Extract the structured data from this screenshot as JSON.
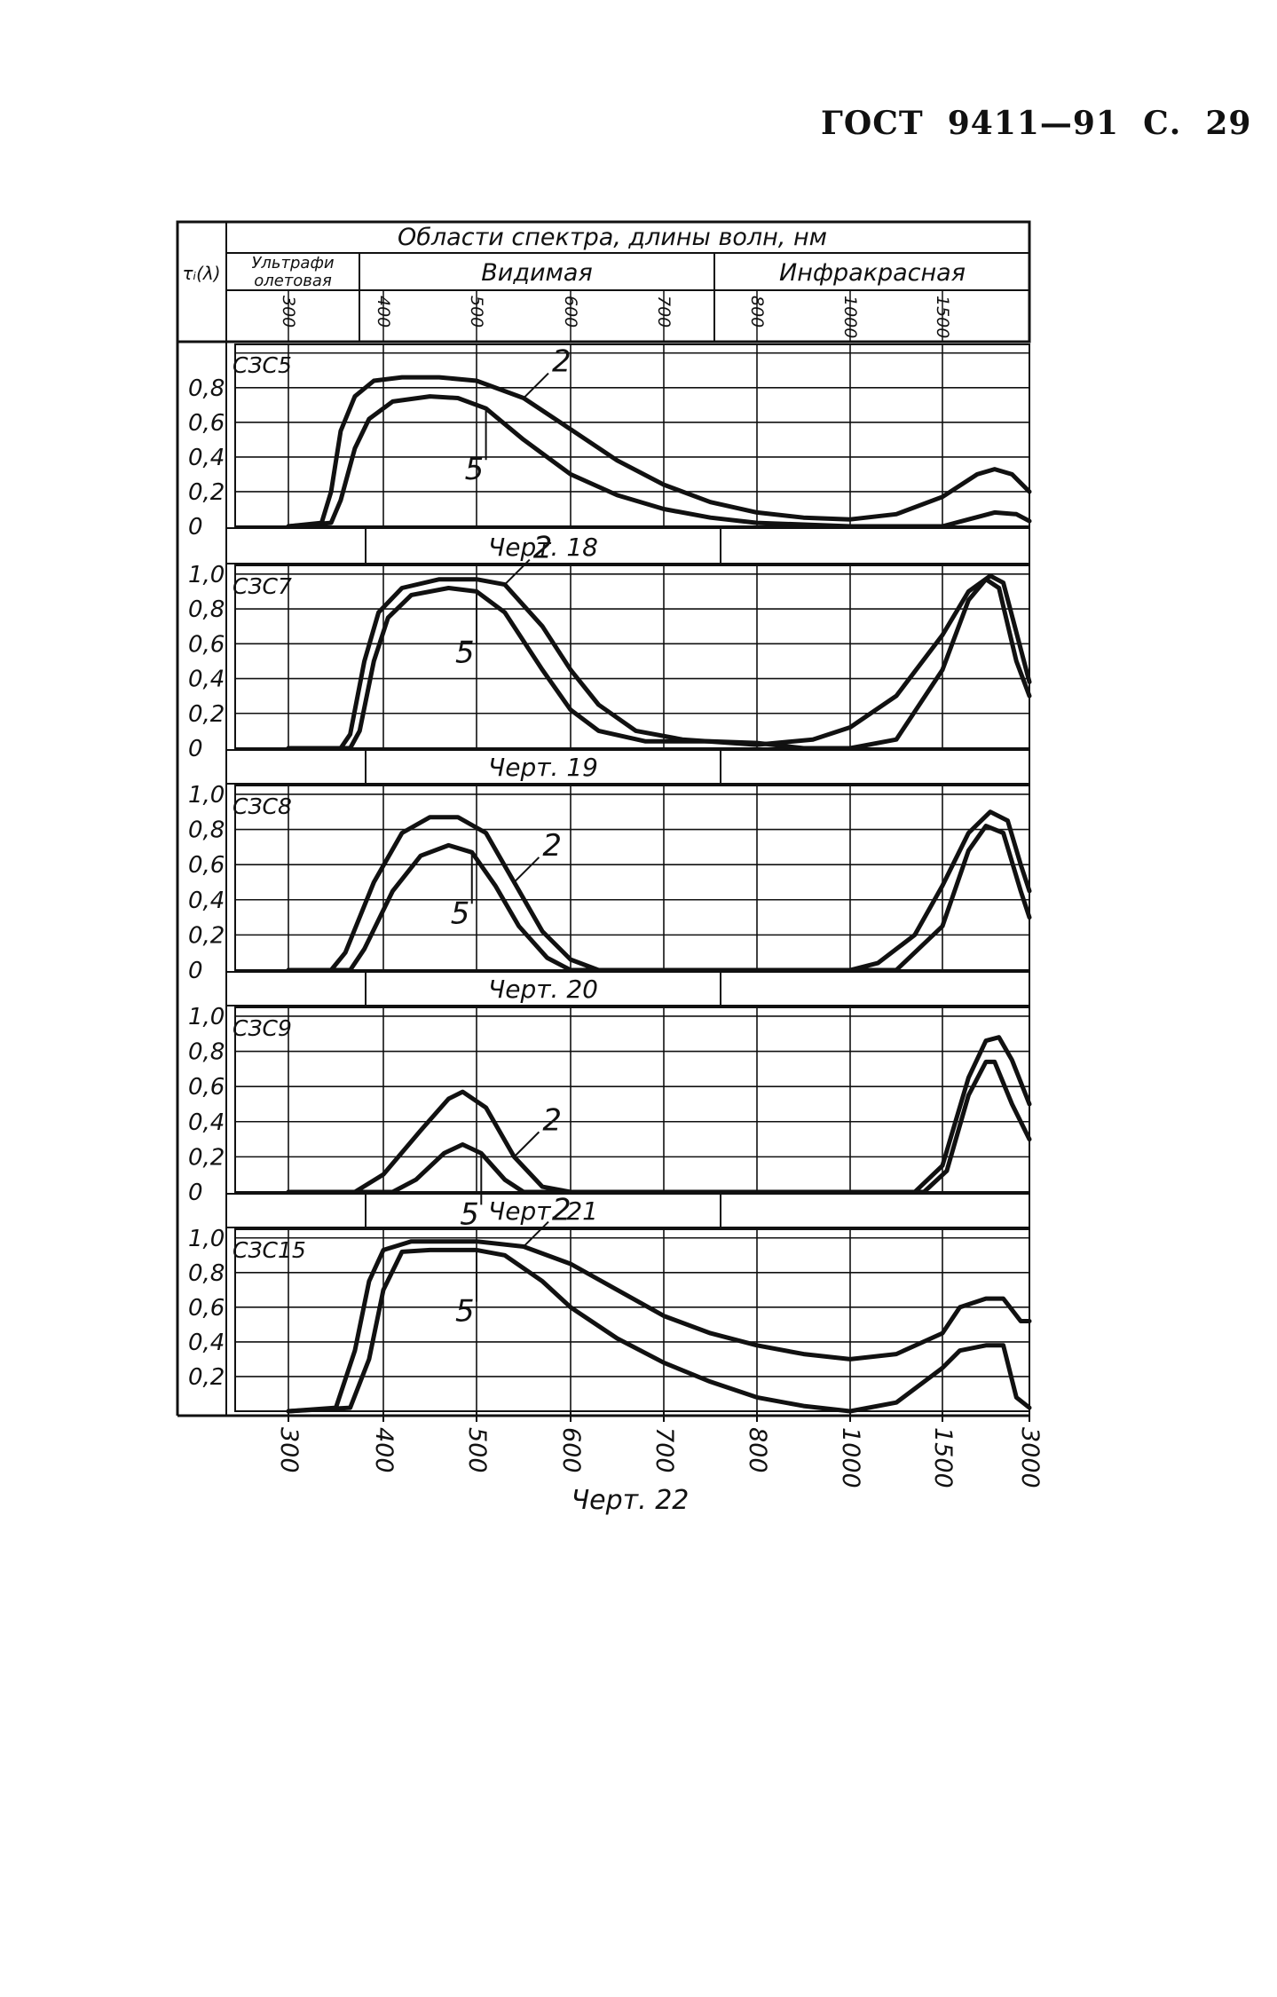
{
  "page": {
    "header": "ГОСТ  9411—91  С.  29"
  },
  "chart_data": {
    "type": "line",
    "header": {
      "title": "Области спектра, длины волн,  нм",
      "y_symbol": "τᵢ(λ)",
      "regions": [
        "Ультрафиолетовая",
        "Видимая",
        "Инфракрасная"
      ],
      "top_ticks": [
        "300",
        "400",
        "500",
        "600",
        "700",
        "800",
        "1000",
        "1500"
      ]
    },
    "x_ticks": [
      "300",
      "400",
      "500",
      "600",
      "700",
      "800",
      "1000",
      "1500",
      "3000"
    ],
    "x_note": "x positions are tick indices (0=300, 1=400, 2=500, 3=600, 4=700, 5=800, 6=1000, 7=1500, 8=3000) — nonlinear wavelength scale",
    "y_ticks": [
      "0",
      "0,2",
      "0,4",
      "0,6",
      "0,8",
      "1,0"
    ],
    "panels": [
      {
        "label": "СЗС5",
        "caption": "Черт. 18",
        "y_tick_labels": [
          "0",
          "0,2",
          "0,4",
          "0,6",
          "0,8"
        ],
        "series": [
          {
            "name": "2",
            "points": [
              [
                0,
                0
              ],
              [
                0.35,
                0.02
              ],
              [
                0.45,
                0.2
              ],
              [
                0.55,
                0.55
              ],
              [
                0.7,
                0.75
              ],
              [
                0.9,
                0.84
              ],
              [
                1.2,
                0.86
              ],
              [
                1.6,
                0.86
              ],
              [
                2.0,
                0.84
              ],
              [
                2.5,
                0.74
              ],
              [
                3.0,
                0.56
              ],
              [
                3.5,
                0.38
              ],
              [
                4.0,
                0.24
              ],
              [
                4.5,
                0.14
              ],
              [
                5.0,
                0.08
              ],
              [
                5.5,
                0.05
              ],
              [
                6.0,
                0.04
              ],
              [
                6.5,
                0.07
              ],
              [
                7.0,
                0.17
              ],
              [
                7.4,
                0.3
              ],
              [
                7.6,
                0.33
              ],
              [
                7.8,
                0.3
              ],
              [
                8.0,
                0.2
              ]
            ]
          },
          {
            "name": "5",
            "points": [
              [
                0,
                0
              ],
              [
                0.45,
                0.02
              ],
              [
                0.55,
                0.15
              ],
              [
                0.7,
                0.45
              ],
              [
                0.85,
                0.62
              ],
              [
                1.1,
                0.72
              ],
              [
                1.5,
                0.75
              ],
              [
                1.8,
                0.74
              ],
              [
                2.1,
                0.68
              ],
              [
                2.5,
                0.5
              ],
              [
                3.0,
                0.3
              ],
              [
                3.5,
                0.18
              ],
              [
                4.0,
                0.1
              ],
              [
                4.5,
                0.05
              ],
              [
                5.0,
                0.02
              ],
              [
                6.0,
                0
              ],
              [
                7.0,
                0
              ],
              [
                7.3,
                0.04
              ],
              [
                7.6,
                0.08
              ],
              [
                7.85,
                0.07
              ],
              [
                8.0,
                0.03
              ]
            ]
          }
        ]
      },
      {
        "label": "СЗС7",
        "caption": "Черт. 19",
        "y_tick_labels": [
          "0",
          "0,2",
          "0,4",
          "0,6",
          "0,8",
          "1,0"
        ],
        "series": [
          {
            "name": "2",
            "points": [
              [
                0,
                0
              ],
              [
                0.55,
                0
              ],
              [
                0.65,
                0.08
              ],
              [
                0.8,
                0.5
              ],
              [
                0.95,
                0.78
              ],
              [
                1.2,
                0.92
              ],
              [
                1.6,
                0.97
              ],
              [
                2.0,
                0.97
              ],
              [
                2.3,
                0.94
              ],
              [
                2.7,
                0.7
              ],
              [
                3.0,
                0.45
              ],
              [
                3.3,
                0.25
              ],
              [
                3.7,
                0.1
              ],
              [
                4.2,
                0.05
              ],
              [
                5.0,
                0.02
              ],
              [
                5.6,
                0.05
              ],
              [
                6.0,
                0.12
              ],
              [
                6.5,
                0.3
              ],
              [
                7.0,
                0.65
              ],
              [
                7.3,
                0.9
              ],
              [
                7.55,
                0.99
              ],
              [
                7.7,
                0.95
              ],
              [
                8.0,
                0.38
              ]
            ]
          },
          {
            "name": "5",
            "points": [
              [
                0,
                0
              ],
              [
                0.65,
                0
              ],
              [
                0.75,
                0.1
              ],
              [
                0.9,
                0.5
              ],
              [
                1.05,
                0.75
              ],
              [
                1.3,
                0.88
              ],
              [
                1.7,
                0.92
              ],
              [
                2.0,
                0.9
              ],
              [
                2.3,
                0.78
              ],
              [
                2.7,
                0.45
              ],
              [
                3.0,
                0.22
              ],
              [
                3.3,
                0.1
              ],
              [
                3.8,
                0.04
              ],
              [
                4.5,
                0.04
              ],
              [
                5.0,
                0.03
              ],
              [
                5.5,
                0
              ],
              [
                6.0,
                0
              ],
              [
                6.5,
                0.05
              ],
              [
                7.0,
                0.45
              ],
              [
                7.3,
                0.85
              ],
              [
                7.5,
                0.97
              ],
              [
                7.65,
                0.92
              ],
              [
                7.85,
                0.5
              ],
              [
                8.0,
                0.3
              ]
            ]
          }
        ]
      },
      {
        "label": "СЗС8",
        "caption": "Черт. 20",
        "y_tick_labels": [
          "0",
          "0,2",
          "0,4",
          "0,6",
          "0,8",
          "1,0"
        ],
        "series": [
          {
            "name": "2",
            "points": [
              [
                0,
                0
              ],
              [
                0.45,
                0
              ],
              [
                0.6,
                0.1
              ],
              [
                0.9,
                0.5
              ],
              [
                1.2,
                0.78
              ],
              [
                1.5,
                0.87
              ],
              [
                1.8,
                0.87
              ],
              [
                2.1,
                0.78
              ],
              [
                2.4,
                0.5
              ],
              [
                2.7,
                0.22
              ],
              [
                3.0,
                0.06
              ],
              [
                3.3,
                0
              ],
              [
                6.0,
                0
              ],
              [
                6.3,
                0.04
              ],
              [
                6.7,
                0.2
              ],
              [
                7.0,
                0.48
              ],
              [
                7.3,
                0.78
              ],
              [
                7.55,
                0.9
              ],
              [
                7.75,
                0.85
              ],
              [
                7.9,
                0.6
              ],
              [
                8.0,
                0.45
              ]
            ]
          },
          {
            "name": "5",
            "points": [
              [
                0,
                0
              ],
              [
                0.65,
                0
              ],
              [
                0.8,
                0.12
              ],
              [
                1.1,
                0.45
              ],
              [
                1.4,
                0.65
              ],
              [
                1.7,
                0.71
              ],
              [
                1.95,
                0.67
              ],
              [
                2.2,
                0.48
              ],
              [
                2.45,
                0.25
              ],
              [
                2.75,
                0.07
              ],
              [
                3.0,
                0
              ],
              [
                6.5,
                0
              ],
              [
                7.0,
                0.25
              ],
              [
                7.3,
                0.68
              ],
              [
                7.5,
                0.82
              ],
              [
                7.7,
                0.78
              ],
              [
                7.9,
                0.45
              ],
              [
                8.0,
                0.3
              ]
            ]
          }
        ]
      },
      {
        "label": "СЗС9",
        "caption": "Черт. 21",
        "y_tick_labels": [
          "0",
          "0,2",
          "0,4",
          "0,6",
          "0,8",
          "1,0"
        ],
        "series": [
          {
            "name": "2",
            "points": [
              [
                0,
                0
              ],
              [
                0.7,
                0
              ],
              [
                1.0,
                0.1
              ],
              [
                1.4,
                0.35
              ],
              [
                1.7,
                0.53
              ],
              [
                1.85,
                0.57
              ],
              [
                2.1,
                0.48
              ],
              [
                2.4,
                0.2
              ],
              [
                2.7,
                0.03
              ],
              [
                3.0,
                0
              ],
              [
                6.7,
                0
              ],
              [
                7.0,
                0.15
              ],
              [
                7.3,
                0.65
              ],
              [
                7.5,
                0.86
              ],
              [
                7.65,
                0.88
              ],
              [
                7.8,
                0.75
              ],
              [
                8.0,
                0.5
              ]
            ]
          },
          {
            "name": "5",
            "points": [
              [
                0,
                0
              ],
              [
                1.1,
                0
              ],
              [
                1.35,
                0.07
              ],
              [
                1.65,
                0.22
              ],
              [
                1.85,
                0.27
              ],
              [
                2.05,
                0.22
              ],
              [
                2.3,
                0.07
              ],
              [
                2.5,
                0
              ],
              [
                6.8,
                0
              ],
              [
                7.05,
                0.12
              ],
              [
                7.3,
                0.55
              ],
              [
                7.5,
                0.74
              ],
              [
                7.6,
                0.74
              ],
              [
                7.8,
                0.5
              ],
              [
                8.0,
                0.3
              ]
            ]
          }
        ]
      },
      {
        "label": "СЗС15",
        "caption": "Черт. 22",
        "y_tick_labels": [
          "0,2",
          "0,4",
          "0,6",
          "0,8",
          "1,0"
        ],
        "series": [
          {
            "name": "2",
            "points": [
              [
                0,
                0
              ],
              [
                0.5,
                0.02
              ],
              [
                0.7,
                0.35
              ],
              [
                0.85,
                0.75
              ],
              [
                1.0,
                0.93
              ],
              [
                1.3,
                0.98
              ],
              [
                2.0,
                0.98
              ],
              [
                2.5,
                0.95
              ],
              [
                3.0,
                0.85
              ],
              [
                3.5,
                0.7
              ],
              [
                4.0,
                0.55
              ],
              [
                4.5,
                0.45
              ],
              [
                5.0,
                0.38
              ],
              [
                5.5,
                0.33
              ],
              [
                6.0,
                0.3
              ],
              [
                6.5,
                0.33
              ],
              [
                7.0,
                0.45
              ],
              [
                7.2,
                0.6
              ],
              [
                7.5,
                0.65
              ],
              [
                7.7,
                0.65
              ],
              [
                7.9,
                0.52
              ],
              [
                8.0,
                0.52
              ]
            ]
          },
          {
            "name": "5",
            "points": [
              [
                0,
                0
              ],
              [
                0.65,
                0.02
              ],
              [
                0.85,
                0.3
              ],
              [
                1.0,
                0.7
              ],
              [
                1.2,
                0.92
              ],
              [
                1.5,
                0.93
              ],
              [
                2.0,
                0.93
              ],
              [
                2.3,
                0.9
              ],
              [
                2.7,
                0.75
              ],
              [
                3.0,
                0.6
              ],
              [
                3.5,
                0.42
              ],
              [
                4.0,
                0.28
              ],
              [
                4.5,
                0.17
              ],
              [
                5.0,
                0.08
              ],
              [
                5.5,
                0.03
              ],
              [
                6.0,
                0
              ],
              [
                6.5,
                0.05
              ],
              [
                7.0,
                0.25
              ],
              [
                7.2,
                0.35
              ],
              [
                7.5,
                0.38
              ],
              [
                7.7,
                0.38
              ],
              [
                7.85,
                0.08
              ],
              [
                8.0,
                0.02
              ]
            ]
          }
        ]
      }
    ]
  }
}
